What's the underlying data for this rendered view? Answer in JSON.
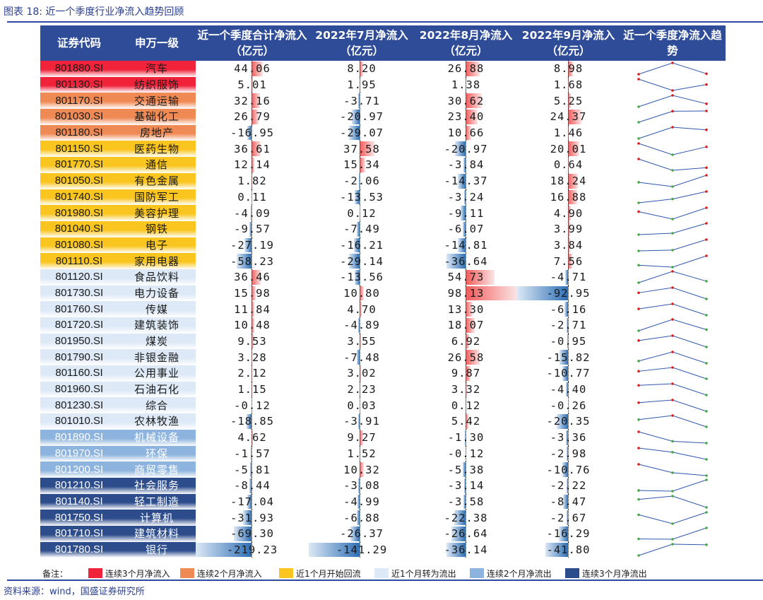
{
  "figure": {
    "title": "图表 18:  近一个季度行业净流入趋势回顾",
    "source": "资料来源：wind，国盛证券研究所"
  },
  "headers": {
    "code": "证券代码",
    "name": "申万一级",
    "quarter": "近一个季度合计净流入（亿元）",
    "jul": "2022年7月净流入（亿元）",
    "aug": "2022年8月净流入（亿元）",
    "sep": "2022年9月净流入（亿元）",
    "trend": "近一个季度净流入趋势"
  },
  "colors": {
    "header": "#2f4c98",
    "cat3in": "#f0233a",
    "cat2in": "#f08a55",
    "cat1in": "#fac51e",
    "cat1out": "#dde9f6",
    "cat2out": "#8db4de",
    "cat3out": "#2c4c8c"
  },
  "rows": [
    {
      "code": "801880.SI",
      "name": "汽车",
      "cat": "cat3in",
      "quarter": "44.06",
      "jul": "8.20",
      "aug": "26.88",
      "sep": "8.98"
    },
    {
      "code": "801130.SI",
      "name": "纺织服饰",
      "cat": "cat3in",
      "quarter": "5.01",
      "jul": "1.95",
      "aug": "1.38",
      "sep": "1.68"
    },
    {
      "code": "801170.SI",
      "name": "交通运输",
      "cat": "cat2in",
      "quarter": "32.16",
      "jul": "-3.71",
      "aug": "30.62",
      "sep": "5.25"
    },
    {
      "code": "801030.SI",
      "name": "基础化工",
      "cat": "cat2in",
      "quarter": "26.79",
      "jul": "-20.97",
      "aug": "23.40",
      "sep": "24.37"
    },
    {
      "code": "801180.SI",
      "name": "房地产",
      "cat": "cat2in",
      "quarter": "-16.95",
      "jul": "-29.07",
      "aug": "10.66",
      "sep": "1.46"
    },
    {
      "code": "801150.SI",
      "name": "医药生物",
      "cat": "cat1in",
      "quarter": "36.61",
      "jul": "37.58",
      "aug": "-20.97",
      "sep": "20.01"
    },
    {
      "code": "801770.SI",
      "name": "通信",
      "cat": "cat1in",
      "quarter": "12.14",
      "jul": "15.34",
      "aug": "-3.84",
      "sep": "0.64"
    },
    {
      "code": "801050.SI",
      "name": "有色金属",
      "cat": "cat1in",
      "quarter": "1.82",
      "jul": "-2.06",
      "aug": "-14.37",
      "sep": "18.24"
    },
    {
      "code": "801740.SI",
      "name": "国防军工",
      "cat": "cat1in",
      "quarter": "0.11",
      "jul": "-13.53",
      "aug": "-3.24",
      "sep": "16.88"
    },
    {
      "code": "801980.SI",
      "name": "美容护理",
      "cat": "cat1in",
      "quarter": "-4.09",
      "jul": "0.12",
      "aug": "-9.11",
      "sep": "4.90"
    },
    {
      "code": "801040.SI",
      "name": "钢铁",
      "cat": "cat1in",
      "quarter": "-9.57",
      "jul": "-7.49",
      "aug": "-6.07",
      "sep": "3.99"
    },
    {
      "code": "801080.SI",
      "name": "电子",
      "cat": "cat1in",
      "quarter": "-27.19",
      "jul": "-16.21",
      "aug": "-14.81",
      "sep": "3.84"
    },
    {
      "code": "801110.SI",
      "name": "家用电器",
      "cat": "cat1in",
      "quarter": "-58.23",
      "jul": "-29.14",
      "aug": "-36.64",
      "sep": "7.56"
    },
    {
      "code": "801120.SI",
      "name": "食品饮料",
      "cat": "cat1out",
      "quarter": "36.46",
      "jul": "-13.56",
      "aug": "54.73",
      "sep": "-4.71"
    },
    {
      "code": "801730.SI",
      "name": "电力设备",
      "cat": "cat1out",
      "quarter": "15.98",
      "jul": "10.80",
      "aug": "98.13",
      "sep": "-92.95"
    },
    {
      "code": "801760.SI",
      "name": "传媒",
      "cat": "cat1out",
      "quarter": "11.84",
      "jul": "4.70",
      "aug": "13.30",
      "sep": "-6.16"
    },
    {
      "code": "801720.SI",
      "name": "建筑装饰",
      "cat": "cat1out",
      "quarter": "10.48",
      "jul": "-4.89",
      "aug": "18.07",
      "sep": "-2.71"
    },
    {
      "code": "801950.SI",
      "name": "煤炭",
      "cat": "cat1out",
      "quarter": "9.53",
      "jul": "3.55",
      "aug": "6.92",
      "sep": "-0.95"
    },
    {
      "code": "801790.SI",
      "name": "非银金融",
      "cat": "cat1out",
      "quarter": "3.28",
      "jul": "-7.48",
      "aug": "26.58",
      "sep": "-15.82"
    },
    {
      "code": "801160.SI",
      "name": "公用事业",
      "cat": "cat1out",
      "quarter": "2.12",
      "jul": "3.02",
      "aug": "9.87",
      "sep": "-10.77"
    },
    {
      "code": "801960.SI",
      "name": "石油石化",
      "cat": "cat1out",
      "quarter": "1.15",
      "jul": "2.23",
      "aug": "3.32",
      "sep": "-4.40"
    },
    {
      "code": "801230.SI",
      "name": "综合",
      "cat": "cat1out",
      "quarter": "-0.12",
      "jul": "0.03",
      "aug": "0.12",
      "sep": "-0.26"
    },
    {
      "code": "801010.SI",
      "name": "农林牧渔",
      "cat": "cat1out",
      "quarter": "-18.85",
      "jul": "-3.91",
      "aug": "5.42",
      "sep": "-20.35"
    },
    {
      "code": "801890.SI",
      "name": "机械设备",
      "cat": "cat2out",
      "quarter": "4.62",
      "jul": "9.27",
      "aug": "-1.30",
      "sep": "-3.36"
    },
    {
      "code": "801970.SI",
      "name": "环保",
      "cat": "cat2out",
      "quarter": "-1.57",
      "jul": "1.52",
      "aug": "-0.12",
      "sep": "-2.98"
    },
    {
      "code": "801200.SI",
      "name": "商贸零售",
      "cat": "cat2out",
      "quarter": "-5.81",
      "jul": "10.32",
      "aug": "-5.38",
      "sep": "-10.76"
    },
    {
      "code": "801210.SI",
      "name": "社会服务",
      "cat": "cat3out",
      "quarter": "-8.44",
      "jul": "-3.08",
      "aug": "-3.14",
      "sep": "-2.22"
    },
    {
      "code": "801140.SI",
      "name": "轻工制造",
      "cat": "cat3out",
      "quarter": "-17.04",
      "jul": "-4.99",
      "aug": "-3.58",
      "sep": "-8.47"
    },
    {
      "code": "801750.SI",
      "name": "计算机",
      "cat": "cat3out",
      "quarter": "-31.93",
      "jul": "-6.88",
      "aug": "-22.38",
      "sep": "-2.67"
    },
    {
      "code": "801710.SI",
      "name": "建筑材料",
      "cat": "cat3out",
      "quarter": "-69.30",
      "jul": "-26.37",
      "aug": "-26.64",
      "sep": "-16.29"
    },
    {
      "code": "801780.SI",
      "name": "银行",
      "cat": "cat3out",
      "quarter": "-219.23",
      "jul": "-141.29",
      "aug": "-36.14",
      "sep": "-41.80"
    }
  ],
  "legend": {
    "label": "备注：",
    "items": [
      {
        "key": "cat3in",
        "text": "连续3个月净流入"
      },
      {
        "key": "cat2in",
        "text": "连续2个月净流入"
      },
      {
        "key": "cat1in",
        "text": "近1个月开始回流"
      },
      {
        "key": "cat1out",
        "text": "近1个月转为流出"
      },
      {
        "key": "cat2out",
        "text": "连续2个月净流出"
      },
      {
        "key": "cat3out",
        "text": "连续3个月净流出"
      }
    ]
  }
}
